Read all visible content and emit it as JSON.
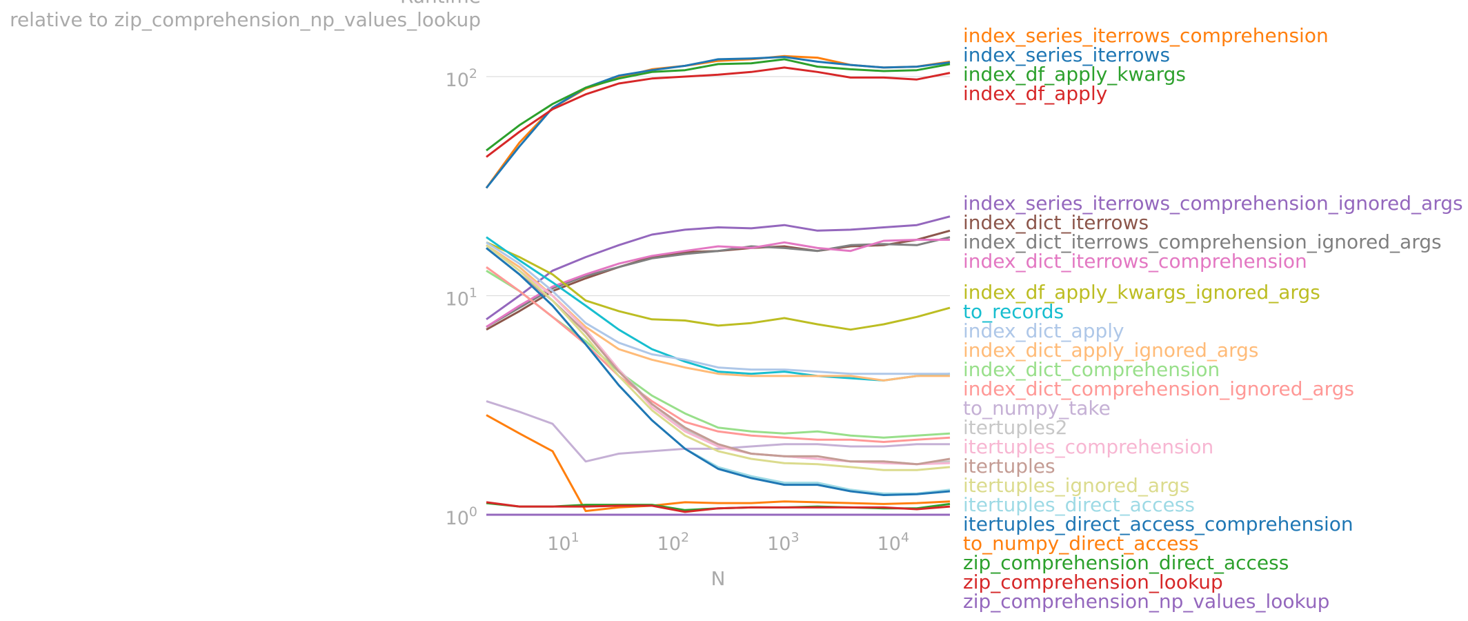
{
  "chart_data": {
    "type": "line",
    "title": "Runtime",
    "subtitle": "relative to zip_comprehension_np_values_lookup",
    "xlabel": "N",
    "ylabel": "",
    "xscale": "log",
    "yscale": "log",
    "xlim": [
      2,
      32768
    ],
    "ylim": [
      1,
      400
    ],
    "xticks": [
      {
        "base": "10",
        "exp": "1"
      },
      {
        "base": "10",
        "exp": "2"
      },
      {
        "base": "10",
        "exp": "3"
      },
      {
        "base": "10",
        "exp": "4"
      }
    ],
    "yticks": [
      {
        "base": "10",
        "exp": "0"
      },
      {
        "base": "10",
        "exp": "1"
      },
      {
        "base": "10",
        "exp": "2"
      }
    ],
    "grid": "horizontal",
    "legend": "right",
    "x": [
      2,
      4,
      8,
      16,
      32,
      64,
      128,
      256,
      512,
      1024,
      2048,
      4096,
      8192,
      16384,
      32768
    ],
    "series": [
      {
        "name": "index_series_iterrows_comprehension",
        "color": "#ff7f0e",
        "values": [
          31,
          50,
          72,
          88,
          99,
          108,
          112,
          118,
          120,
          124,
          122,
          113,
          110,
          111,
          117
        ]
      },
      {
        "name": "index_series_iterrows",
        "color": "#1f77b4",
        "values": [
          31,
          48,
          72,
          89,
          101,
          107,
          112,
          120,
          121,
          123,
          117,
          113,
          110,
          111,
          116
        ]
      },
      {
        "name": "index_df_apply_kwargs",
        "color": "#2ca02c",
        "values": [
          46,
          60,
          75,
          89,
          98,
          105,
          107,
          114,
          115,
          120,
          111,
          108,
          106,
          107,
          114
        ]
      },
      {
        "name": "index_df_apply",
        "color": "#d62728",
        "values": [
          43,
          56,
          71,
          83,
          93,
          98,
          100,
          102,
          105,
          110,
          105,
          99,
          99,
          97,
          104
        ]
      },
      {
        "name": "index_series_iterrows_comprehension_ignored_args",
        "color": "#9467bd",
        "values": [
          7.8,
          10,
          13,
          15,
          17,
          19,
          20,
          20.5,
          20.3,
          21,
          19.8,
          20,
          20.5,
          21,
          23
        ]
      },
      {
        "name": "index_dict_iterrows",
        "color": "#8c564b",
        "values": [
          7,
          8.5,
          10.5,
          12,
          13.5,
          15,
          15.8,
          16,
          16.5,
          16.8,
          16,
          16.8,
          17,
          18,
          19.8
        ]
      },
      {
        "name": "index_dict_iterrows_comprehension_ignored_args",
        "color": "#7f7f7f",
        "values": [
          7.2,
          8.8,
          10.8,
          12.3,
          13.5,
          14.8,
          15.5,
          16,
          16.8,
          16.5,
          16,
          17,
          17.2,
          17,
          18.5
        ]
      },
      {
        "name": "index_dict_iterrows_comprehension",
        "color": "#e377c2",
        "values": [
          7.2,
          9,
          11,
          12.5,
          14,
          15.2,
          16,
          16.8,
          16.5,
          17.5,
          16.5,
          16,
          17.8,
          18,
          18
        ]
      },
      {
        "name": "index_df_apply_kwargs_ignored_args",
        "color": "#bcbd22",
        "values": [
          17.5,
          15,
          12.5,
          9.5,
          8.5,
          7.8,
          7.7,
          7.3,
          7.5,
          7.9,
          7.4,
          7,
          7.4,
          8,
          8.8
        ]
      },
      {
        "name": "to_records",
        "color": "#17becf",
        "values": [
          18.5,
          14.5,
          11.5,
          9,
          7,
          5.7,
          5,
          4.5,
          4.4,
          4.5,
          4.3,
          4.2,
          4.1,
          4.3,
          4.4
        ]
      },
      {
        "name": "index_dict_apply",
        "color": "#aec7e8",
        "values": [
          17.5,
          14,
          10.5,
          7.5,
          6.1,
          5.4,
          5.1,
          4.7,
          4.6,
          4.6,
          4.5,
          4.4,
          4.4,
          4.4,
          4.4
        ]
      },
      {
        "name": "index_dict_apply_ignored_args",
        "color": "#ffbb78",
        "values": [
          17,
          13.5,
          10,
          7.2,
          5.7,
          5.1,
          4.7,
          4.4,
          4.3,
          4.3,
          4.3,
          4.3,
          4.1,
          4.3,
          4.3
        ]
      },
      {
        "name": "index_dict_comprehension",
        "color": "#98df8a",
        "values": [
          13,
          10.5,
          8,
          6.2,
          4.5,
          3.5,
          2.9,
          2.5,
          2.4,
          2.35,
          2.4,
          2.3,
          2.25,
          2.3,
          2.35
        ]
      },
      {
        "name": "index_dict_comprehension_ignored_args",
        "color": "#ff9896",
        "values": [
          13.5,
          10.5,
          8,
          6,
          4.3,
          3.3,
          2.65,
          2.4,
          2.3,
          2.25,
          2.2,
          2.2,
          2.15,
          2.2,
          2.25
        ]
      },
      {
        "name": "to_numpy_take",
        "color": "#c5b0d5",
        "values": [
          3.3,
          2.95,
          2.6,
          1.75,
          1.9,
          1.95,
          2,
          2,
          2.05,
          2.1,
          2.1,
          2.05,
          2.05,
          2.1,
          2.1
        ]
      },
      {
        "name": "itertuples2",
        "color": "#c7c7c7",
        "values": [
          17,
          13,
          10,
          7,
          4.6,
          3.2,
          2.45,
          2.05,
          1.9,
          1.85,
          1.8,
          1.75,
          1.75,
          1.7,
          1.75
        ]
      },
      {
        "name": "itertuples_comprehension",
        "color": "#f7b6d2",
        "values": [
          17,
          13,
          10,
          7,
          4.6,
          3.1,
          2.4,
          2.05,
          1.9,
          1.85,
          1.8,
          1.75,
          1.72,
          1.7,
          1.72
        ]
      },
      {
        "name": "itertuples",
        "color": "#c49c94",
        "values": [
          16.5,
          12.5,
          9.5,
          6.8,
          4.5,
          3.2,
          2.5,
          2.1,
          1.9,
          1.85,
          1.85,
          1.75,
          1.75,
          1.7,
          1.8
        ]
      },
      {
        "name": "itertuples_ignored_args",
        "color": "#dbdb8d",
        "values": [
          17,
          13,
          9.5,
          6.5,
          4.3,
          3,
          2.3,
          1.95,
          1.8,
          1.72,
          1.7,
          1.65,
          1.6,
          1.6,
          1.65
        ]
      },
      {
        "name": "itertuples_direct_access",
        "color": "#9edae5",
        "values": [
          16.5,
          12.5,
          9,
          6,
          3.9,
          2.7,
          2,
          1.65,
          1.5,
          1.4,
          1.4,
          1.3,
          1.25,
          1.25,
          1.3
        ]
      },
      {
        "name": "itertuples_direct_access_comprehension",
        "color": "#1f77b4",
        "values": [
          16.5,
          12.5,
          9,
          6,
          3.9,
          2.7,
          2,
          1.62,
          1.47,
          1.37,
          1.37,
          1.28,
          1.23,
          1.24,
          1.28
        ]
      },
      {
        "name": "to_numpy_direct_access",
        "color": "#ff7f0e",
        "values": [
          2.85,
          2.35,
          1.95,
          1.04,
          1.08,
          1.1,
          1.14,
          1.13,
          1.13,
          1.15,
          1.14,
          1.13,
          1.12,
          1.13,
          1.15
        ]
      },
      {
        "name": "zip_comprehension_direct_access",
        "color": "#2ca02c",
        "values": [
          1.13,
          1.09,
          1.09,
          1.11,
          1.11,
          1.11,
          1.05,
          1.07,
          1.08,
          1.08,
          1.09,
          1.08,
          1.07,
          1.07,
          1.12
        ]
      },
      {
        "name": "zip_comprehension_lookup",
        "color": "#d62728",
        "values": [
          1.14,
          1.09,
          1.09,
          1.09,
          1.1,
          1.1,
          1.03,
          1.07,
          1.08,
          1.08,
          1.08,
          1.08,
          1.08,
          1.06,
          1.09
        ]
      },
      {
        "name": "zip_comprehension_np_values_lookup",
        "color": "#9467bd",
        "values": [
          1,
          1,
          1,
          1,
          1,
          1,
          1,
          1,
          1,
          1,
          1,
          1,
          1,
          1,
          1
        ]
      }
    ]
  }
}
